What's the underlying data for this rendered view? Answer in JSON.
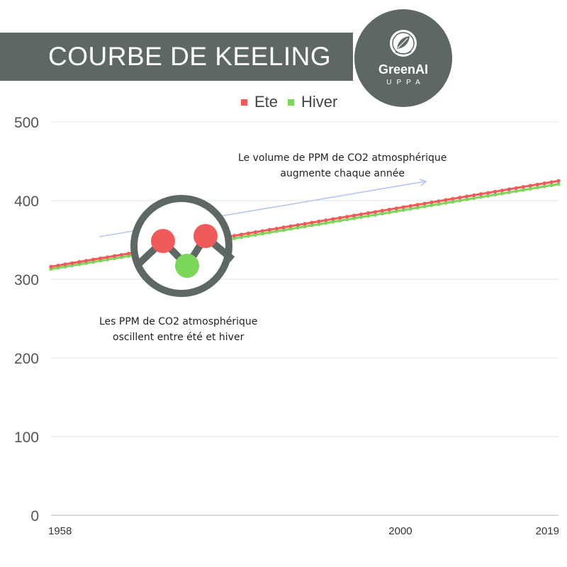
{
  "header": {
    "title": "COURBE DE KEELING",
    "logo_name": "GreenAI",
    "logo_sub": "UPPA"
  },
  "colors": {
    "banner": "#5e6862",
    "ete": "#f05a5a",
    "hiver": "#7cd65a",
    "arrow": "#b7c4f2"
  },
  "annotations": {
    "trend_line1": "Le volume de PPM de CO2 atmosphérique",
    "trend_line2": "augmente chaque année",
    "osc_line1": "Les PPM de CO2 atmosphérique",
    "osc_line2": "oscillent entre été et hiver"
  },
  "icons": {
    "logo": "leaf-globe-icon",
    "molecule": "co2-molecule-icon"
  },
  "chart_data": {
    "type": "line",
    "title": "",
    "xlabel": "",
    "ylabel": "",
    "ylim": [
      0,
      500
    ],
    "xlim": [
      1958,
      2019
    ],
    "y_ticks": [
      0,
      100,
      200,
      300,
      400,
      500
    ],
    "x_ticks": [
      1958,
      2000,
      2019
    ],
    "grid": true,
    "legend": "top",
    "series": [
      {
        "name": "Ete",
        "start": 1958,
        "end": 2019,
        "y_start": 316,
        "y_end": 425
      },
      {
        "name": "Hiver",
        "start": 1958,
        "end": 2019,
        "y_start": 313,
        "y_end": 421
      }
    ]
  }
}
